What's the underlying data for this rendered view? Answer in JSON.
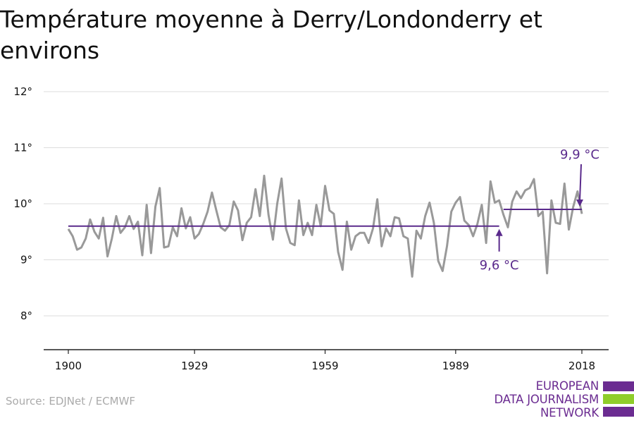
{
  "title": "Température moyenne à Derry/Londonderry et environs",
  "source": "Source: EDJNet / ECMWF",
  "logo": {
    "line1": "EUROPEAN",
    "line2": "DATA JOURNALISM",
    "line3": "NETWORK",
    "colors": [
      "#6b2c91",
      "#8fcd2a",
      "#6b2c91"
    ]
  },
  "colors": {
    "series": "#999999",
    "average": "#5a2a8c",
    "grid": "#dddddd",
    "axis": "#222222"
  },
  "chart_data": {
    "type": "line",
    "title": "Température moyenne à Derry/Londonderry et environs",
    "xlabel": "",
    "ylabel": "",
    "xlim": [
      1900,
      2018
    ],
    "ylim": [
      7.5,
      12
    ],
    "x_ticks": [
      1900,
      1929,
      1959,
      1989,
      2018
    ],
    "x_tick_labels": [
      "1900",
      "1929",
      "1959",
      "1989",
      "2018"
    ],
    "y_ticks": [
      8,
      9,
      10,
      11,
      12
    ],
    "y_tick_labels": [
      "8°",
      "9°",
      "10°",
      "11°",
      "12°"
    ],
    "grid": true,
    "series": [
      {
        "x_start": 1900,
        "x_end": 2018,
        "values": [
          9.55,
          9.42,
          9.18,
          9.22,
          9.38,
          9.72,
          9.5,
          9.38,
          9.75,
          9.06,
          9.38,
          9.78,
          9.48,
          9.58,
          9.78,
          9.55,
          9.68,
          9.08,
          9.98,
          9.12,
          9.95,
          10.28,
          9.22,
          9.24,
          9.58,
          9.42,
          9.92,
          9.56,
          9.76,
          9.38,
          9.46,
          9.64,
          9.86,
          10.2,
          9.88,
          9.58,
          9.52,
          9.62,
          10.04,
          9.88,
          9.35,
          9.66,
          9.76,
          10.26,
          9.78,
          10.5,
          9.8,
          9.36,
          10.0,
          10.45,
          9.56,
          9.3,
          9.26,
          10.06,
          9.44,
          9.66,
          9.44,
          9.98,
          9.6,
          10.32,
          9.88,
          9.82,
          9.14,
          8.82,
          9.68,
          9.18,
          9.42,
          9.48,
          9.48,
          9.3,
          9.56,
          10.08,
          9.24,
          9.56,
          9.42,
          9.76,
          9.74,
          9.42,
          9.38,
          8.7,
          9.52,
          9.38,
          9.78,
          10.02,
          9.66,
          8.98,
          8.8,
          9.24,
          9.86,
          10.02,
          10.12,
          9.7,
          9.62,
          9.42,
          9.64,
          9.98,
          9.3,
          10.4,
          10.02,
          10.06,
          9.8,
          9.58,
          10.04,
          10.22,
          10.1,
          10.24,
          10.28,
          10.44,
          9.78,
          9.86,
          8.76,
          10.06,
          9.66,
          9.64,
          10.36,
          9.54,
          9.94,
          10.22,
          9.82
        ]
      }
    ],
    "averages": [
      {
        "x_start": 1900,
        "x_end": 1999,
        "value": 9.6,
        "label": "9,6 °C"
      },
      {
        "x_start": 2000,
        "x_end": 2018,
        "value": 9.9,
        "label": "9,9 °C"
      }
    ]
  }
}
